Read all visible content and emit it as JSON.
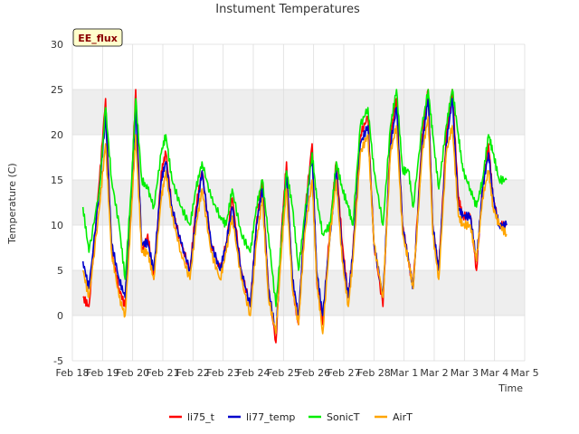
{
  "chart_data": {
    "type": "line",
    "title": "Instument Temperatures",
    "xlabel": "Time",
    "ylabel": "Temperature (C)",
    "badge": "EE_flux",
    "x_ticks": [
      "Feb 18",
      "Feb 19",
      "Feb 20",
      "Feb 21",
      "Feb 22",
      "Feb 23",
      "Feb 24",
      "Feb 25",
      "Feb 26",
      "Feb 27",
      "Feb 28",
      "Mar 1",
      "Mar 2",
      "Mar 3",
      "Mar 4",
      "Mar 5"
    ],
    "xlim": [
      0,
      15
    ],
    "y_ticks": [
      -5,
      0,
      5,
      10,
      15,
      20,
      25,
      30
    ],
    "ylim": [
      -5,
      30
    ],
    "grid": true,
    "legend_position": "bottom",
    "series": [
      {
        "name": "li75_t",
        "color": "#ff0000",
        "x": [
          0.35,
          0.55,
          0.9,
          1.1,
          1.3,
          1.55,
          1.75,
          1.95,
          2.1,
          2.3,
          2.5,
          2.7,
          2.95,
          3.1,
          3.3,
          3.6,
          3.9,
          4.1,
          4.3,
          4.6,
          4.9,
          5.1,
          5.3,
          5.6,
          5.9,
          6.1,
          6.3,
          6.5,
          6.75,
          6.95,
          7.1,
          7.3,
          7.5,
          7.7,
          7.95,
          8.1,
          8.3,
          8.55,
          8.75,
          8.95,
          9.15,
          9.3,
          9.55,
          9.8,
          10.0,
          10.3,
          10.55,
          10.75,
          10.95,
          11.15,
          11.3,
          11.6,
          11.8,
          11.95,
          12.15,
          12.4,
          12.6,
          12.8,
          12.95,
          13.2,
          13.4,
          13.6,
          13.8,
          13.95,
          14.15,
          14.4
        ],
        "y": [
          2,
          1,
          15,
          24,
          7,
          3,
          1,
          13,
          25,
          7,
          9,
          4,
          16,
          18,
          12,
          8,
          5,
          12,
          16,
          8,
          5,
          8,
          13,
          5,
          1,
          10,
          15,
          3,
          -3,
          10,
          17,
          3,
          -1,
          11,
          19,
          4,
          -1,
          10,
          17,
          8,
          2,
          7,
          20,
          22,
          8,
          1,
          20,
          24,
          10,
          6,
          3,
          20,
          25,
          10,
          5,
          20,
          25,
          13,
          11,
          11,
          5,
          14,
          19,
          13,
          10,
          10
        ]
      },
      {
        "name": "li77_temp",
        "color": "#0000cc",
        "x": [
          0.35,
          0.55,
          0.9,
          1.1,
          1.3,
          1.55,
          1.75,
          1.95,
          2.1,
          2.3,
          2.5,
          2.7,
          2.95,
          3.1,
          3.3,
          3.6,
          3.9,
          4.1,
          4.3,
          4.6,
          4.9,
          5.1,
          5.3,
          5.6,
          5.9,
          6.1,
          6.3,
          6.5,
          6.75,
          6.95,
          7.1,
          7.3,
          7.5,
          7.7,
          7.95,
          8.1,
          8.3,
          8.55,
          8.75,
          8.95,
          9.15,
          9.3,
          9.55,
          9.8,
          10.0,
          10.3,
          10.55,
          10.75,
          10.95,
          11.15,
          11.3,
          11.6,
          11.8,
          11.95,
          12.15,
          12.4,
          12.6,
          12.8,
          12.95,
          13.2,
          13.4,
          13.6,
          13.8,
          13.95,
          14.15,
          14.4
        ],
        "y": [
          6,
          3,
          14,
          22,
          8,
          4,
          2,
          12,
          23,
          8,
          8,
          5,
          15,
          17,
          12,
          8,
          5,
          11,
          16,
          8,
          5,
          8,
          12,
          5,
          1,
          10,
          14,
          3,
          -2,
          9,
          16,
          4,
          0,
          10,
          18,
          5,
          0,
          9,
          16,
          7,
          2,
          7,
          19,
          21,
          8,
          2,
          19,
          23,
          10,
          6,
          3,
          19,
          24,
          10,
          5,
          19,
          24,
          12,
          11,
          11,
          6,
          14,
          18,
          13,
          10,
          10
        ]
      },
      {
        "name": "SonicT",
        "color": "#00ee00",
        "x": [
          0.35,
          0.55,
          0.9,
          1.1,
          1.3,
          1.55,
          1.75,
          1.95,
          2.1,
          2.3,
          2.5,
          2.7,
          2.95,
          3.1,
          3.3,
          3.6,
          3.9,
          4.1,
          4.3,
          4.6,
          4.9,
          5.1,
          5.3,
          5.6,
          5.9,
          6.1,
          6.3,
          6.5,
          6.75,
          6.95,
          7.1,
          7.3,
          7.5,
          7.7,
          7.95,
          8.1,
          8.3,
          8.55,
          8.75,
          8.95,
          9.15,
          9.3,
          9.55,
          9.8,
          10.0,
          10.3,
          10.55,
          10.75,
          10.95,
          11.15,
          11.3,
          11.6,
          11.8,
          11.95,
          12.15,
          12.4,
          12.6,
          12.8,
          12.95,
          13.2,
          13.4,
          13.6,
          13.8,
          13.95,
          14.15,
          14.4
        ],
        "y": [
          12,
          7,
          14,
          23,
          15,
          10,
          4,
          14,
          24,
          15,
          14,
          12,
          18,
          20,
          15,
          12,
          10,
          14,
          17,
          13,
          11,
          10,
          14,
          9,
          7,
          12,
          15,
          9,
          1,
          9,
          16,
          12,
          5,
          11,
          18,
          13,
          9,
          10,
          17,
          14,
          12,
          10,
          21,
          23,
          16,
          10,
          21,
          25,
          16,
          16,
          12,
          21,
          25,
          20,
          14,
          21,
          25,
          20,
          16,
          14,
          12,
          15,
          20,
          18,
          15,
          15
        ]
      },
      {
        "name": "AirT",
        "color": "#ffa500",
        "x": [
          0.35,
          0.55,
          0.9,
          1.1,
          1.3,
          1.55,
          1.75,
          1.95,
          2.1,
          2.3,
          2.5,
          2.7,
          2.95,
          3.1,
          3.3,
          3.6,
          3.9,
          4.1,
          4.3,
          4.6,
          4.9,
          5.1,
          5.3,
          5.6,
          5.9,
          6.1,
          6.3,
          6.5,
          6.75,
          6.95,
          7.1,
          7.3,
          7.5,
          7.7,
          7.95,
          8.1,
          8.3,
          8.55,
          8.75,
          8.95,
          9.15,
          9.3,
          9.55,
          9.8,
          10.0,
          10.3,
          10.55,
          10.75,
          10.95,
          11.15,
          11.3,
          11.6,
          11.8,
          11.95,
          12.15,
          12.4,
          12.6,
          12.8,
          12.95,
          13.2,
          13.4,
          13.6,
          13.8,
          13.95,
          14.15,
          14.4
        ],
        "y": [
          5,
          2,
          12,
          19,
          7,
          2,
          0,
          11,
          20,
          7,
          7,
          4,
          13,
          16,
          11,
          7,
          4,
          10,
          14,
          7,
          4,
          7,
          11,
          4,
          0,
          8,
          13,
          2,
          -2,
          8,
          14,
          3,
          -1,
          9,
          15,
          4,
          -2,
          9,
          15,
          6,
          1,
          6,
          18,
          20,
          8,
          2,
          18,
          21,
          9,
          6,
          3,
          18,
          22,
          9,
          4,
          18,
          21,
          11,
          10,
          10,
          6,
          13,
          16,
          12,
          10,
          9
        ]
      }
    ]
  }
}
